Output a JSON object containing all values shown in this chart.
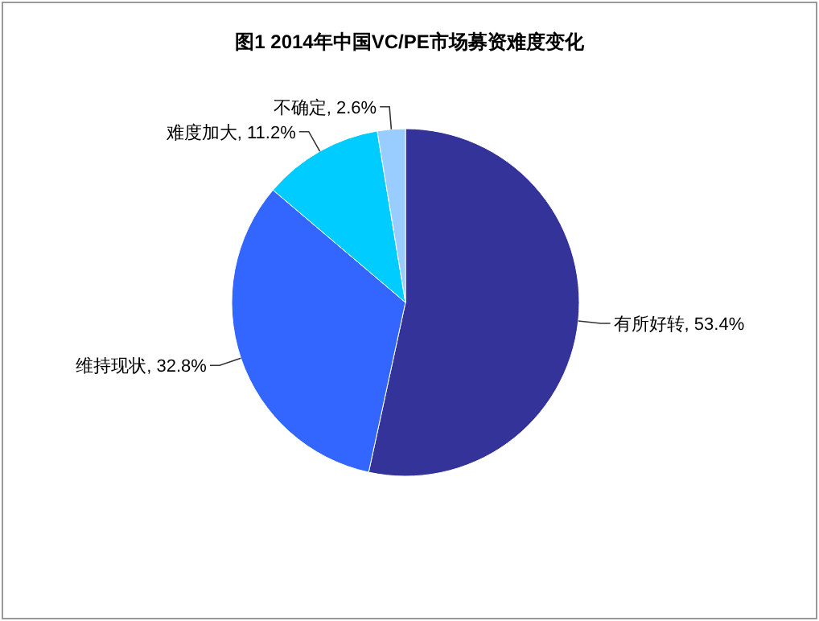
{
  "chart_data": {
    "type": "pie",
    "title": "图1 2014年中国VC/PE市场募资难度变化",
    "categories": [
      "有所好转",
      "维持现状",
      "难度加大",
      "不确定"
    ],
    "values": [
      53.4,
      32.8,
      11.2,
      2.6
    ],
    "colors": [
      "#333399",
      "#3366ff",
      "#00ccff",
      "#99ccff"
    ],
    "value_labels": [
      "53.4%",
      "32.8%",
      "11.2%",
      "2.6%"
    ]
  }
}
